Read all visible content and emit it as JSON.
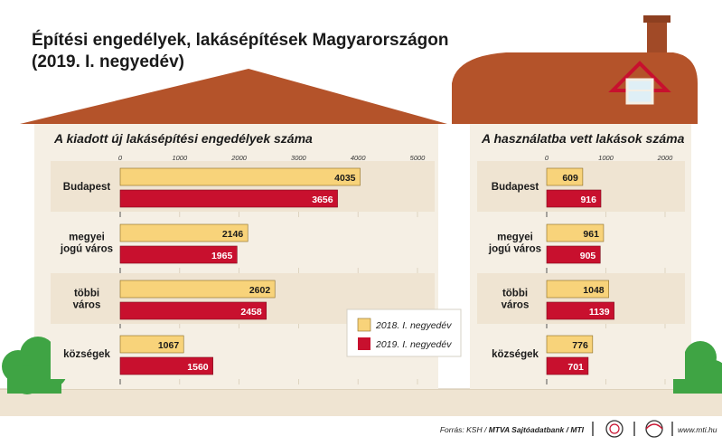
{
  "title_line1": "Építési engedélyek, lakásépítések Magyarországon",
  "title_line2": "(2019. I. negyedév)",
  "colors": {
    "series_2018": "#f8d37a",
    "series_2019": "#c8102e",
    "roof": "#b4532a",
    "wall": "#f5efe4",
    "band": "#efe4d2",
    "grass": "#3fa444"
  },
  "legend": {
    "s2018": "2018. I. negyedév",
    "s2019": "2019. I. negyedév",
    "placement": "bottom-right of left panel"
  },
  "footer": {
    "source": "Forrás: KSH / ",
    "agency": "MTVA Sajtóadatbank / MTI",
    "url": "www.mti.hu"
  },
  "chart_data": [
    {
      "type": "bar",
      "orientation": "horizontal",
      "title": "A kiadott új lakásépítési engedélyek száma",
      "xlim": [
        0,
        5000
      ],
      "ticks": [
        "0",
        "1000",
        "2000",
        "3000",
        "4000",
        "5000"
      ],
      "categories": [
        "Budapest",
        "megyei jogú város",
        "többi város",
        "községek"
      ],
      "category_lines": [
        [
          "Budapest"
        ],
        [
          "megyei",
          "jogú város"
        ],
        [
          "többi",
          "város"
        ],
        [
          "községek"
        ]
      ],
      "series": [
        {
          "name": "2018. I. negyedév",
          "values": [
            4035,
            2146,
            2602,
            1067
          ]
        },
        {
          "name": "2019. I. negyedév",
          "values": [
            3656,
            1965,
            2458,
            1560
          ]
        }
      ]
    },
    {
      "type": "bar",
      "orientation": "horizontal",
      "title": "A használatba vett lakások száma",
      "xlim": [
        0,
        2000
      ],
      "ticks": [
        "0",
        "1000",
        "2000"
      ],
      "categories": [
        "Budapest",
        "megyei jogú város",
        "többi város",
        "községek"
      ],
      "category_lines": [
        [
          "Budapest"
        ],
        [
          "megyei",
          "jogú város"
        ],
        [
          "többi",
          "város"
        ],
        [
          "községek"
        ]
      ],
      "series": [
        {
          "name": "2018. I. negyedév",
          "values": [
            609,
            961,
            1048,
            776
          ]
        },
        {
          "name": "2019. I. negyedév",
          "values": [
            916,
            905,
            1139,
            701
          ]
        }
      ]
    }
  ]
}
